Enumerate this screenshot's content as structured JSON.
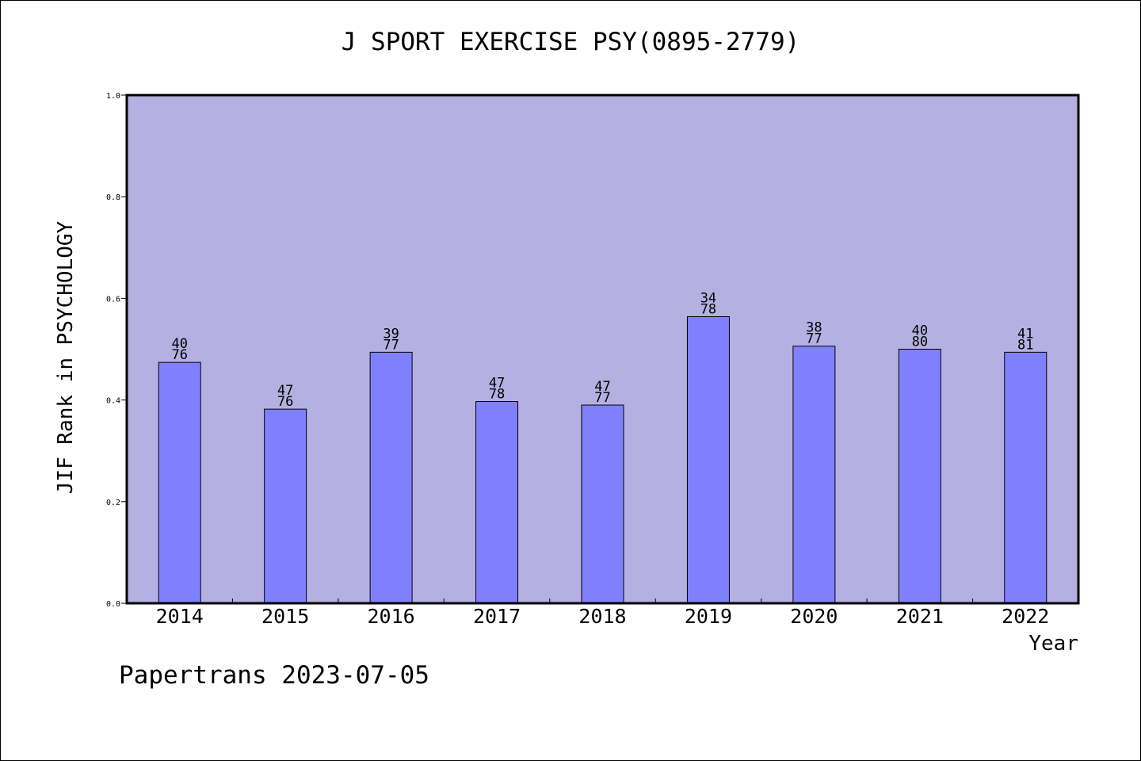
{
  "colors": {
    "plot_background": "#b5b0e2",
    "bar_fill": "#8080ff",
    "bar_stroke": "#000000",
    "axis": "#000000"
  },
  "chart_data": {
    "type": "bar",
    "title": "J SPORT EXERCISE PSY(0895-2779)",
    "xlabel": "Year",
    "ylabel": "JIF Rank in PSYCHOLOGY",
    "ylim": [
      0,
      1.0
    ],
    "yticks": [
      "0.0",
      "0.2",
      "0.4",
      "0.6",
      "0.8",
      "1.0"
    ],
    "grid": false,
    "categories": [
      "2014",
      "2015",
      "2016",
      "2017",
      "2018",
      "2019",
      "2020",
      "2021",
      "2022"
    ],
    "values": [
      0.474,
      0.382,
      0.494,
      0.397,
      0.39,
      0.564,
      0.506,
      0.5,
      0.494
    ],
    "annotations": [
      {
        "top": "40",
        "bottom": "76"
      },
      {
        "top": "47",
        "bottom": "76"
      },
      {
        "top": "39",
        "bottom": "77"
      },
      {
        "top": "47",
        "bottom": "78"
      },
      {
        "top": "47",
        "bottom": "77"
      },
      {
        "top": "34",
        "bottom": "78"
      },
      {
        "top": "38",
        "bottom": "77"
      },
      {
        "top": "40",
        "bottom": "80"
      },
      {
        "top": "41",
        "bottom": "81"
      }
    ]
  },
  "footer": "Papertrans 2023-07-05"
}
